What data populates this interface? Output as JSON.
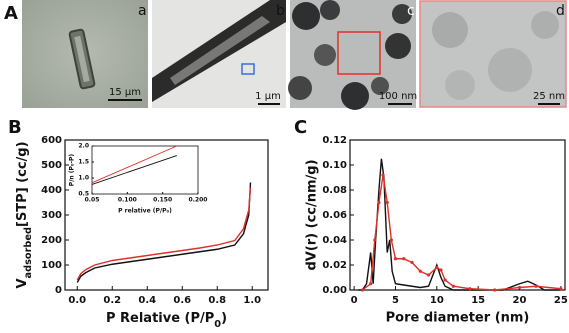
{
  "figure": {
    "panel": "A",
    "images": [
      {
        "label": "a",
        "scale": "15 µm"
      },
      {
        "label": "b",
        "scale": "1 µm"
      },
      {
        "label": "c",
        "scale": "100 nm"
      },
      {
        "label": "d",
        "scale": "25 nm"
      }
    ]
  },
  "chart_data": [
    {
      "type": "line",
      "panel": "B",
      "ylabel": [
        "V",
        "adsorbed",
        "[STP] (cc/g)"
      ],
      "xlabel": [
        "P Relative (P/P",
        "0",
        ")"
      ],
      "xlim": [
        -0.07,
        1.09
      ],
      "ylim": [
        0,
        600
      ],
      "xticks": [
        {
          "value": 0,
          "label": "0.0"
        },
        0.2,
        0.4,
        0.6,
        0.8,
        {
          "value": 1,
          "label": "1.0"
        }
      ],
      "yticks": [
        0,
        100,
        200,
        300,
        400,
        500,
        600
      ],
      "series": [
        {
          "color": "#111111",
          "x": [
            0,
            0.02,
            0.05,
            0.1,
            0.2,
            0.3,
            0.4,
            0.5,
            0.6,
            0.7,
            0.8,
            0.9,
            0.95,
            0.98,
            0.99
          ],
          "values": [
            30,
            55,
            70,
            88,
            103,
            113,
            123,
            133,
            143,
            153,
            163,
            180,
            225,
            300,
            430
          ]
        },
        {
          "color": "#e0302a",
          "x": [
            0,
            0.02,
            0.05,
            0.1,
            0.2,
            0.3,
            0.4,
            0.5,
            0.6,
            0.7,
            0.8,
            0.9,
            0.95,
            0.98,
            0.99
          ],
          "values": [
            40,
            65,
            82,
            100,
            118,
            128,
            138,
            148,
            158,
            168,
            180,
            198,
            245,
            320,
            410
          ]
        }
      ]
    },
    {
      "type": "line",
      "inset": true,
      "ylabel": "P/n (P₀-P)",
      "xlabel": "P relative (P/P₀)",
      "xlim": [
        0.05,
        0.2
      ],
      "ylim": [
        0.5,
        2
      ],
      "xticks": [
        0.05,
        {
          "value": 0.1,
          "label": "0.100"
        },
        {
          "value": 0.15,
          "label": "0.150"
        },
        {
          "value": 0.2,
          "label": "0.200"
        }
      ],
      "yticks": [
        0.5,
        {
          "value": 1,
          "label": "1.0"
        },
        1.5,
        {
          "value": 2,
          "label": "2.0"
        }
      ],
      "series": [
        {
          "color": "#111111",
          "x": [
            0.05,
            0.17
          ],
          "values": [
            0.8,
            1.7
          ]
        },
        {
          "color": "#e0302a",
          "x": [
            0.05,
            0.17
          ],
          "values": [
            0.85,
            2
          ]
        }
      ]
    },
    {
      "type": "line",
      "panel": "C",
      "ylabel": "dV(r) (cc/nm/g)",
      "xlabel": "Pore diameter (nm)",
      "xlim": [
        -0.5,
        25.5
      ],
      "ylim": [
        0,
        0.12
      ],
      "xticks": [
        0,
        5,
        10,
        15,
        20,
        25
      ],
      "yticks": [
        {
          "value": 0,
          "label": "0.00"
        },
        0.02,
        0.04,
        0.06,
        0.08,
        {
          "value": 0.1,
          "label": "0.10"
        },
        0.12
      ],
      "series": [
        {
          "color": "#111111",
          "x": [
            0.5,
            1,
            1.5,
            2,
            2.3,
            2.6,
            3,
            3.3,
            3.6,
            4,
            4.3,
            4.6,
            5,
            6,
            7,
            8,
            9,
            10,
            10.5,
            11,
            12,
            15,
            18,
            20,
            21,
            22,
            23,
            25
          ],
          "values": [
            0,
            0,
            0.005,
            0.03,
            0.005,
            0.04,
            0.08,
            0.105,
            0.09,
            0.03,
            0.04,
            0.015,
            0.005,
            0.004,
            0.003,
            0.002,
            0.003,
            0.02,
            0.01,
            0.003,
            0,
            0,
            0,
            0.005,
            0.007,
            0.004,
            0,
            0
          ]
        },
        {
          "color": "#e0302a",
          "markers": true,
          "x": [
            1,
            2,
            2.5,
            3,
            3.5,
            4,
            4.5,
            5,
            6,
            7,
            8,
            9,
            10,
            10.5,
            11,
            12,
            14,
            17,
            20,
            22,
            25
          ],
          "values": [
            0,
            0.005,
            0.04,
            0.07,
            0.092,
            0.07,
            0.04,
            0.025,
            0.025,
            0.022,
            0.015,
            0.012,
            0.018,
            0.016,
            0.008,
            0.003,
            0.001,
            0,
            0.002,
            0.003,
            0.001
          ]
        }
      ]
    }
  ]
}
